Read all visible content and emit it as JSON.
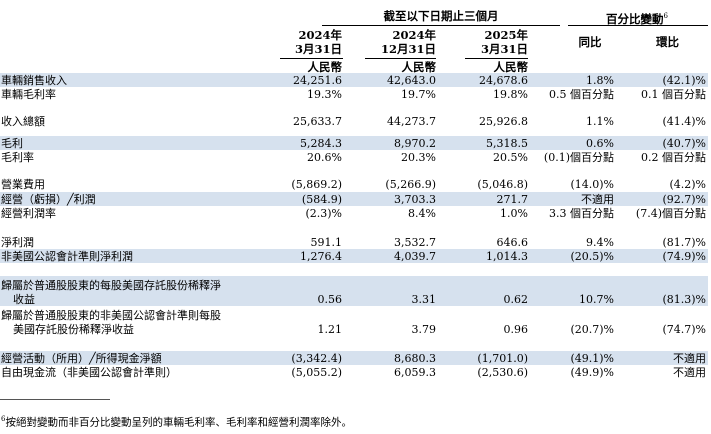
{
  "header": {
    "group_title": "截至以下日期止三個月",
    "change_title": "百分比變動",
    "change_footnote_mark": "6",
    "columns": [
      {
        "year": "2024年",
        "date": "3月31日",
        "currency": "人民幣"
      },
      {
        "year": "2024年",
        "date": "12月31日",
        "currency": "人民幣"
      },
      {
        "year": "2025年",
        "date": "3月31日",
        "currency": "人民幣"
      }
    ],
    "yoy": "同比",
    "qoq": "環比"
  },
  "rows": [
    {
      "label": "車輛銷售收入",
      "v1": "24,251.6",
      "v2": "42,643.0",
      "v3": "24,678.6",
      "yoy": "1.8%",
      "qoq": "(42.1)%"
    },
    {
      "label": "車輛毛利率",
      "v1": "19.3%",
      "v2": "19.7%",
      "v3": "19.8%",
      "yoy": "0.5 個百分點",
      "qoq": "0.1 個百分點"
    },
    {
      "label": "收入總額",
      "v1": "25,633.7",
      "v2": "44,273.7",
      "v3": "25,926.8",
      "yoy": "1.1%",
      "qoq": "(41.4)%"
    },
    {
      "label": "毛利",
      "v1": "5,284.3",
      "v2": "8,970.2",
      "v3": "5,318.5",
      "yoy": "0.6%",
      "qoq": "(40.7)%"
    },
    {
      "label": "毛利率",
      "v1": "20.6%",
      "v2": "20.3%",
      "v3": "20.5%",
      "yoy": "(0.1)個百分點",
      "qoq": "0.2 個百分點"
    },
    {
      "label": "營業費用",
      "v1": "(5,869.2)",
      "v2": "(5,266.9)",
      "v3": "(5,046.8)",
      "yoy": "(14.0)%",
      "qoq": "(4.2)%"
    },
    {
      "label": "經營（虧損）╱利潤",
      "v1": "(584.9)",
      "v2": "3,703.3",
      "v3": "271.7",
      "yoy": "不適用",
      "qoq": "(92.7)%"
    },
    {
      "label": "經營利潤率",
      "v1": "(2.3)%",
      "v2": "8.4%",
      "v3": "1.0%",
      "yoy": "3.3 個百分點",
      "qoq": "(7.4)個百分點"
    },
    {
      "label": "淨利潤",
      "v1": "591.1",
      "v2": "3,532.7",
      "v3": "646.6",
      "yoy": "9.4%",
      "qoq": "(81.7)%"
    },
    {
      "label": "非美國公認會計準則淨利潤",
      "v1": "1,276.4",
      "v2": "4,039.7",
      "v3": "1,014.3",
      "yoy": "(20.5)%",
      "qoq": "(74.9)%"
    },
    {
      "label": "歸屬於普通股股東的每股美國存託股份稀釋淨",
      "label2": "收益",
      "v1": "0.56",
      "v2": "3.31",
      "v3": "0.62",
      "yoy": "10.7%",
      "qoq": "(81.3)%"
    },
    {
      "label": "歸屬於普通股股東的非美國公認會計準則每股",
      "label2": "美國存託股份稀釋淨收益",
      "v1": "1.21",
      "v2": "3.79",
      "v3": "0.96",
      "yoy": "(20.7)%",
      "qoq": "(74.7)%"
    },
    {
      "label": "經營活動（所用）╱所得現金淨額",
      "v1": "(3,342.4)",
      "v2": "8,680.3",
      "v3": "(1,701.0)",
      "yoy": "(49.1)%",
      "qoq": "不適用"
    },
    {
      "label": "自由現金流（非美國公認會計準則）",
      "v1": "(5,055.2)",
      "v2": "6,059.3",
      "v3": "(2,530.6)",
      "yoy": "(49.9)%",
      "qoq": "不適用"
    }
  ],
  "footnote": {
    "mark": "6",
    "text": "按絕對變動而非百分比變動呈列的車輛毛利率、毛利率和經營利潤率除外。"
  }
}
